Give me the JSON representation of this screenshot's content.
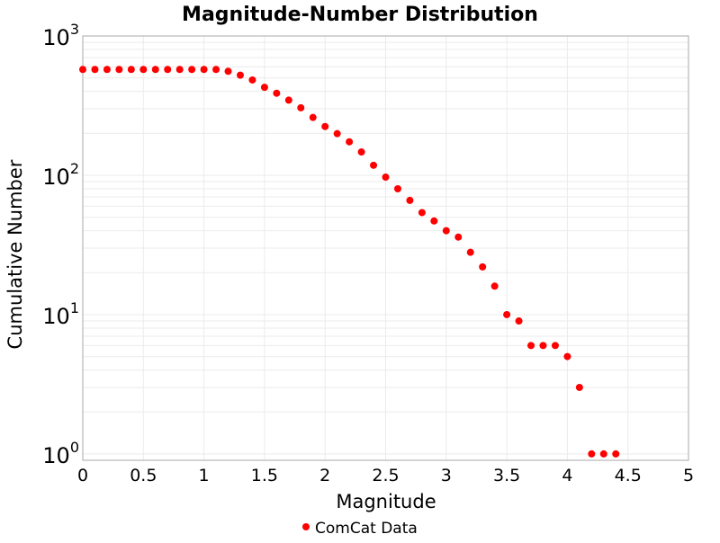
{
  "chart_data": {
    "type": "scatter",
    "title": "Magnitude-Number Distribution",
    "xlabel": "Magnitude",
    "ylabel": "Cumulative Number",
    "xlim": [
      0,
      5
    ],
    "ylim": [
      0.9,
      1000
    ],
    "yscale": "log",
    "grid": true,
    "legend_position": "bottom",
    "x_ticks": [
      "0",
      "0.5",
      "1",
      "1.5",
      "2",
      "2.5",
      "3",
      "3.5",
      "4",
      "4.5",
      "5"
    ],
    "y_ticks": [
      {
        "base": "10",
        "exp": "0"
      },
      {
        "base": "10",
        "exp": "1"
      },
      {
        "base": "10",
        "exp": "2"
      },
      {
        "base": "10",
        "exp": "3"
      }
    ],
    "series": [
      {
        "name": "ComCat Data",
        "color": "#ff0000",
        "x": [
          0,
          0.1,
          0.2,
          0.3,
          0.4,
          0.5,
          0.6,
          0.7,
          0.8,
          0.9,
          1.0,
          1.1,
          1.2,
          1.3,
          1.4,
          1.5,
          1.6,
          1.7,
          1.8,
          1.9,
          2.0,
          2.1,
          2.2,
          2.3,
          2.4,
          2.5,
          2.6,
          2.7,
          2.8,
          2.9,
          3.0,
          3.1,
          3.2,
          3.3,
          3.4,
          3.5,
          3.6,
          3.7,
          3.8,
          3.9,
          4.0,
          4.1,
          4.2,
          4.3,
          4.4
        ],
        "y": [
          575,
          575,
          575,
          575,
          575,
          575,
          575,
          575,
          575,
          575,
          575,
          575,
          558,
          523,
          483,
          428,
          388,
          346,
          305,
          260,
          224,
          199,
          174,
          147,
          118,
          97,
          80,
          66,
          54,
          47,
          40,
          36,
          28,
          22,
          16,
          10,
          9,
          6,
          6,
          6,
          5,
          3,
          1,
          1,
          1
        ]
      }
    ]
  }
}
